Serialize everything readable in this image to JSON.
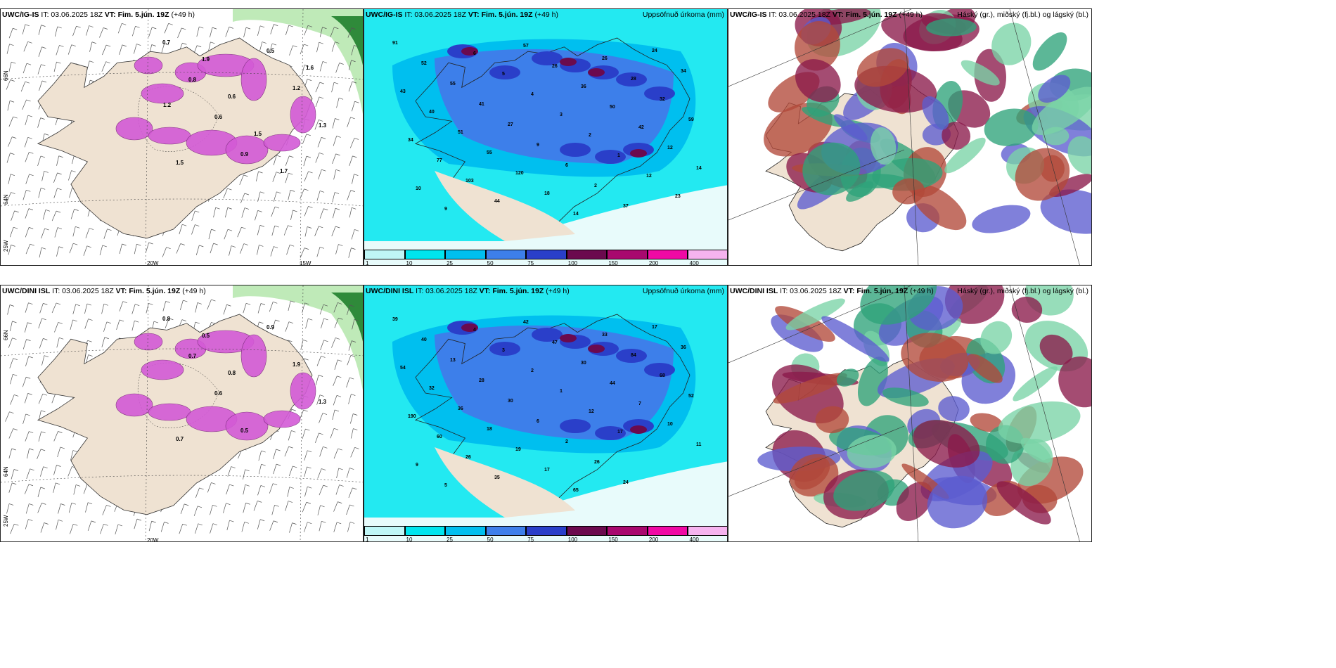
{
  "panels": [
    {
      "id": "p1",
      "model": "UWC/IG-IS",
      "it": "IT: 03.06.2025 18Z",
      "vt_label": "VT:",
      "vt": "Fim. 5.jún. 19Z",
      "lead": "(+49 h)",
      "right": ""
    },
    {
      "id": "p2",
      "model": "UWC/IG-IS",
      "it": "IT: 03.06.2025 18Z",
      "vt_label": "VT:",
      "vt": "Fim. 5.jún. 19Z",
      "lead": "(+49 h)",
      "right": "Uppsöfnuð úrkoma (mm)"
    },
    {
      "id": "p3",
      "model": "UWC/IG-IS",
      "it": "IT: 03.06.2025 18Z",
      "vt_label": "VT:",
      "vt": "Fim. 5.jún. 19Z",
      "lead": "(+49 h)",
      "right": "Háský (gr.), miðský (fj.bl.) og lágský (bl.)"
    },
    {
      "id": "p4",
      "model": "UWC/DINI ISL",
      "it": "IT: 03.06.2025 18Z",
      "vt_label": "VT:",
      "vt": "Fim. 5.jún. 19Z",
      "lead": "(+49 h)",
      "right": ""
    },
    {
      "id": "p5",
      "model": "UWC/DINI ISL",
      "it": "IT: 03.06.2025 18Z",
      "vt_label": "VT:",
      "vt": "Fim. 5.jún. 19Z",
      "lead": "(+49 h)",
      "right": "Uppsöfnuð úrkoma (mm)"
    },
    {
      "id": "p6",
      "model": "UWC/DINI ISL",
      "it": "IT: 03.06.2025 18Z",
      "vt_label": "VT:",
      "vt": "Fim. 5.jún. 19Z",
      "lead": "(+49 h)",
      "right": "Háský (gr.), miðský (fj.bl.) og lágský (bl.)"
    }
  ],
  "axes": {
    "lat66": "66N",
    "lat64": "64N",
    "lon25": "25W",
    "lon20": "20W",
    "lon15": "15W"
  },
  "colorbar": {
    "ticks": [
      "1",
      "10",
      "25",
      "50",
      "75",
      "100",
      "150",
      "200",
      "400"
    ],
    "colors": [
      "#bff6f6",
      "#00e5ee",
      "#00bfef",
      "#3d7fea",
      "#2a3fc9",
      "#6b0a4e",
      "#a8086e",
      "#ef0aa4",
      "#f6b3ef"
    ]
  },
  "precip_top": [
    "91",
    "52",
    "55",
    "41",
    "27",
    "9",
    "6",
    "2",
    "37",
    "24",
    "34",
    "43",
    "40",
    "51",
    "55",
    "120",
    "18",
    "14",
    "26",
    "28",
    "32",
    "59",
    "34",
    "77",
    "103",
    "44",
    "57",
    "26",
    "36",
    "50",
    "42",
    "12",
    "14",
    "10",
    "9",
    "6",
    "5",
    "4",
    "3",
    "2",
    "1",
    "12",
    "23"
  ],
  "precip_bottom": [
    "39",
    "40",
    "13",
    "28",
    "30",
    "6",
    "2",
    "26",
    "24",
    "17",
    "36",
    "54",
    "32",
    "36",
    "18",
    "19",
    "17",
    "65",
    "33",
    "84",
    "68",
    "52",
    "190",
    "60",
    "26",
    "35",
    "42",
    "47",
    "30",
    "44",
    "7",
    "10",
    "11",
    "9",
    "5",
    "4",
    "3",
    "2",
    "1",
    "12",
    "17"
  ],
  "wind_top": [
    "0.7",
    "0.8",
    "0.6",
    "0.9",
    "0.5",
    "1.2",
    "1.3",
    "1.5",
    "1.9",
    "0.6",
    "1.5",
    "1.7",
    "1.6",
    "1.2"
  ],
  "wind_bottom": [
    "0.8",
    "0.7",
    "0.6",
    "0.5",
    "0.9",
    "1.9",
    "1.3",
    "0.7",
    "0.5",
    "0.8"
  ],
  "colors": {
    "land": "#efe2d2",
    "sea_light": "#e8fbfb",
    "cloud_high": "#8a1a4a",
    "cloud_mid": "#5c5ccf",
    "cloud_low": "#2ea37a"
  }
}
